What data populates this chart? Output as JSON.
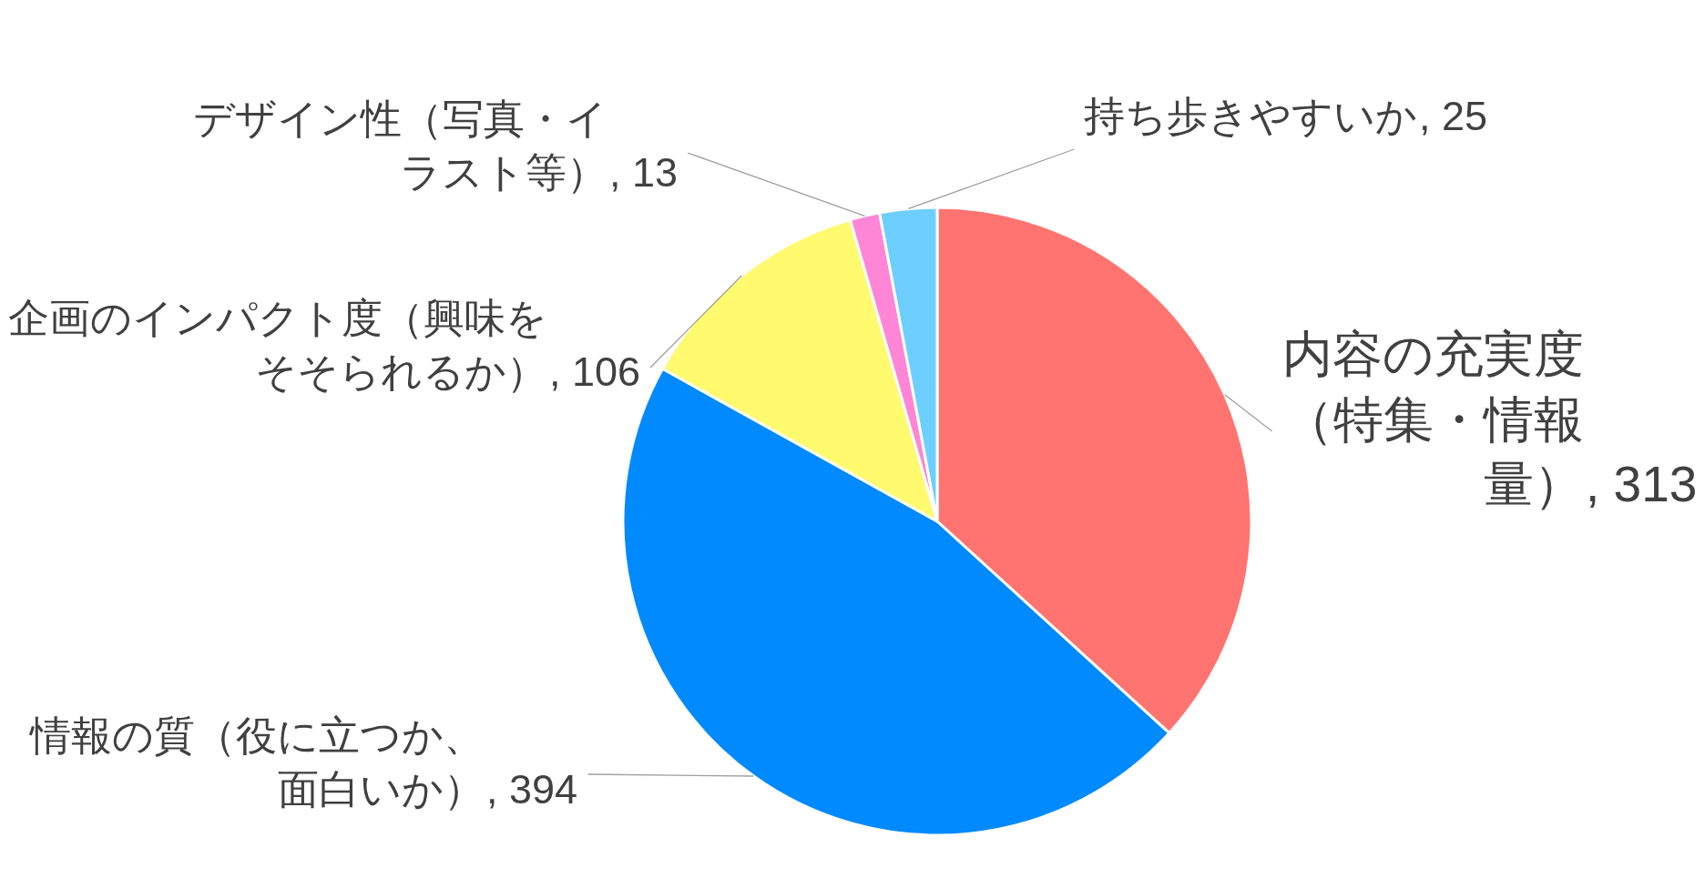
{
  "chart_data": {
    "type": "pie",
    "categories": [
      "内容の充実度（特集・情報量）",
      "情報の質（役に立つか、面白いか）",
      "企画のインパクト度（興味をそそられるか）",
      "デザイン性（写真・イラスト等）",
      "持ち歩きやすいか"
    ],
    "values": [
      313,
      394,
      106,
      13,
      25
    ],
    "value_labels": [
      ", 313",
      ", 394",
      ", 106",
      ", 13",
      ", 25"
    ],
    "colors": [
      "#ff7470",
      "#008afe",
      "#fffa6e",
      "#ff85d6",
      "#6dcfff"
    ]
  }
}
